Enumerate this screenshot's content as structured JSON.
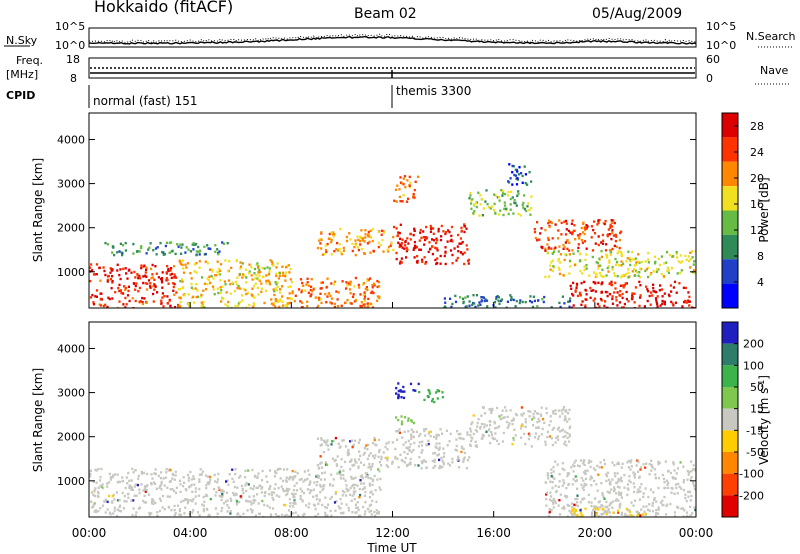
{
  "header": {
    "station": "Hokkaido (fitACF)",
    "beam": "Beam 02",
    "date": "05/Aug/2009"
  },
  "noise_panel": {
    "left_label": "N.Sky",
    "left_ticks": [
      "10^5",
      "10^0"
    ],
    "right_label": "N.Search",
    "right_ticks": [
      "10^5",
      "10^0"
    ]
  },
  "freq_panel": {
    "left_label_1": "Freq.",
    "left_label_2": "[MHz]",
    "left_ticks": [
      "18",
      "8"
    ],
    "right_label": "Nave",
    "right_ticks": [
      "60",
      "0"
    ]
  },
  "cpid": {
    "label": "CPID",
    "modes": [
      {
        "name": "normal (fast) 151",
        "start_hour": 0,
        "end_hour": 12
      },
      {
        "name": "themis 3300",
        "start_hour": 12,
        "end_hour": 24
      }
    ]
  },
  "x_axis": {
    "label": "Time UT",
    "ticks": [
      "00:00",
      "04:00",
      "08:00",
      "12:00",
      "16:00",
      "20:00",
      "00:00"
    ]
  },
  "colors": {
    "power_scale": [
      "#0000ff",
      "#2040c8",
      "#2e8b57",
      "#66bb44",
      "#f0e020",
      "#ff8800",
      "#ff3300",
      "#dd0000"
    ],
    "velocity_scale": [
      "#2020c0",
      "#2e7d6b",
      "#3cb44b",
      "#7ec850",
      "#c8c8c0",
      "#ffcc00",
      "#ff8800",
      "#ff4000",
      "#e00000"
    ]
  },
  "chart_data": [
    {
      "type": "heatmap",
      "title": "Power",
      "xlabel": "",
      "ylabel": "Slant Range [km]",
      "x_range_hours": [
        0,
        24
      ],
      "ylim_km": [
        180,
        4600
      ],
      "y_ticks": [
        "1000",
        "2000",
        "3000",
        "4000"
      ],
      "colorbar": {
        "label": "Power [dB]",
        "ticks": [
          "4",
          "8",
          "12",
          "16",
          "20",
          "24",
          "28"
        ],
        "range": [
          0,
          30
        ]
      },
      "regions": [
        {
          "t": [
            0,
            3.5
          ],
          "r": [
            200,
            1200
          ],
          "value": 26
        },
        {
          "t": [
            3.5,
            8
          ],
          "r": [
            200,
            1300
          ],
          "value": 18
        },
        {
          "t": [
            8,
            11.5
          ],
          "r": [
            200,
            900
          ],
          "value": 22
        },
        {
          "t": [
            0.5,
            5.5
          ],
          "r": [
            1400,
            1700
          ],
          "value": 10
        },
        {
          "t": [
            9,
            12
          ],
          "r": [
            1400,
            2000
          ],
          "value": 20
        },
        {
          "t": [
            12,
            15
          ],
          "r": [
            1200,
            2100
          ],
          "value": 27
        },
        {
          "t": [
            12,
            13
          ],
          "r": [
            2600,
            3200
          ],
          "value": 22
        },
        {
          "t": [
            15,
            17.5
          ],
          "r": [
            2300,
            2900
          ],
          "value": 14
        },
        {
          "t": [
            16.5,
            17.5
          ],
          "r": [
            3000,
            3500
          ],
          "value": 6
        },
        {
          "t": [
            17.5,
            21
          ],
          "r": [
            1500,
            2200
          ],
          "value": 24
        },
        {
          "t": [
            19,
            24
          ],
          "r": [
            200,
            800
          ],
          "value": 27
        },
        {
          "t": [
            18,
            24
          ],
          "r": [
            900,
            1500
          ],
          "value": 16
        },
        {
          "t": [
            14,
            19
          ],
          "r": [
            200,
            500
          ],
          "value": 8
        }
      ]
    },
    {
      "type": "heatmap",
      "title": "Velocity",
      "xlabel": "Time UT",
      "ylabel": "Slant Range [km]",
      "x_range_hours": [
        0,
        24
      ],
      "ylim_km": [
        180,
        4600
      ],
      "y_ticks": [
        "1000",
        "2000",
        "3000",
        "4000"
      ],
      "colorbar": {
        "label": "Velocity [m s^-1]",
        "ticks": [
          "200",
          "100",
          "50",
          "15",
          "-15",
          "-50",
          "-100",
          "-200"
        ],
        "range": [
          -250,
          250
        ]
      },
      "regions": [
        {
          "t": [
            0,
            11.5
          ],
          "r": [
            200,
            1300
          ],
          "value": 0
        },
        {
          "t": [
            9,
            12
          ],
          "r": [
            1300,
            2000
          ],
          "value": 0
        },
        {
          "t": [
            12,
            15
          ],
          "r": [
            1300,
            2200
          ],
          "value": 0
        },
        {
          "t": [
            12,
            13
          ],
          "r": [
            2900,
            3250
          ],
          "value": 220
        },
        {
          "t": [
            13,
            14
          ],
          "r": [
            2800,
            3100
          ],
          "value": 120
        },
        {
          "t": [
            15,
            19
          ],
          "r": [
            1800,
            2700
          ],
          "value": 0
        },
        {
          "t": [
            18,
            24
          ],
          "r": [
            200,
            1500
          ],
          "value": 0
        },
        {
          "t": [
            12,
            13
          ],
          "r": [
            2300,
            2500
          ],
          "value": 40
        },
        {
          "t": [
            19,
            22
          ],
          "r": [
            200,
            400
          ],
          "value": -40
        }
      ]
    }
  ]
}
